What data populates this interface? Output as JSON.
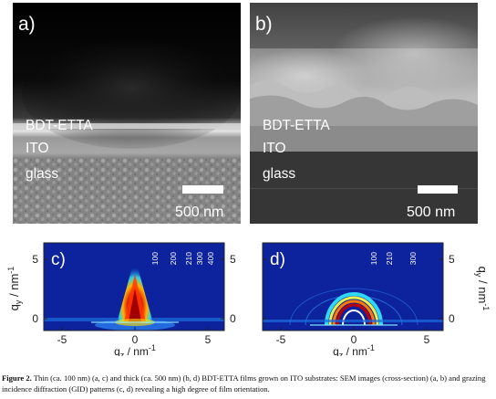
{
  "panels": {
    "a": {
      "tag": "a)",
      "layers": [
        "BDT-ETTA",
        "ITO",
        "glass"
      ],
      "scale": "500 nm"
    },
    "b": {
      "tag": "b)",
      "layers": [
        "BDT-ETTA",
        "ITO",
        "glass"
      ],
      "scale": "500 nm"
    },
    "c": {
      "tag": "c)",
      "reflections": [
        "100",
        "200",
        "210",
        "300",
        "400"
      ]
    },
    "d": {
      "tag": "d)",
      "reflections": [
        "100",
        "210",
        "300"
      ]
    }
  },
  "axes": {
    "x_label": "q",
    "x_sub": "z",
    "x_unit": " / nm",
    "x_exp": "-1",
    "y_label": "q",
    "y_sub": "y",
    "y_unit": " / nm",
    "y_exp": "-1",
    "x_ticks": [
      "-5",
      "0",
      "5"
    ],
    "y_ticks": [
      "5",
      "0"
    ]
  },
  "caption": {
    "label": "Figure 2.",
    "text": " Thin (ca. 100 nm) (a, c) and thick (ca. 500 nm) (b, d) BDT-ETTA films grown on ITO substrates: SEM images (cross-section) (a, b) and grazing incidence diffraction (GID) patterns (c, d) revealing a high degree of film orientation."
  }
}
